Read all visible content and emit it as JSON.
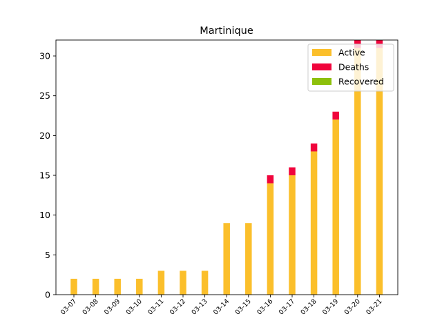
{
  "chart_data": {
    "type": "bar",
    "title": "Martinique",
    "xlabel": "",
    "ylabel": "",
    "categories": [
      "03-07",
      "03-08",
      "03-09",
      "03-10",
      "03-11",
      "03-12",
      "03-13",
      "03-14",
      "03-15",
      "03-16",
      "03-17",
      "03-18",
      "03-19",
      "03-20",
      "03-21"
    ],
    "series": [
      {
        "name": "Active",
        "color": "#fbbf2b",
        "values": [
          2,
          2,
          2,
          2,
          3,
          3,
          3,
          9,
          9,
          14,
          15,
          18,
          22,
          31,
          31
        ]
      },
      {
        "name": "Deaths",
        "color": "#f0043c",
        "values": [
          0,
          0,
          0,
          0,
          0,
          0,
          0,
          0,
          0,
          1,
          1,
          1,
          1,
          1,
          1
        ]
      },
      {
        "name": "Recovered",
        "color": "#8dc00b",
        "values": [
          0,
          0,
          0,
          0,
          0,
          0,
          0,
          0,
          0,
          0,
          0,
          0,
          0,
          0,
          0
        ]
      }
    ],
    "stacked": true,
    "ylim": [
      0,
      32
    ],
    "yticks": [
      0,
      5,
      10,
      15,
      20,
      25,
      30
    ],
    "grid": false,
    "legend_position": "top-right"
  }
}
